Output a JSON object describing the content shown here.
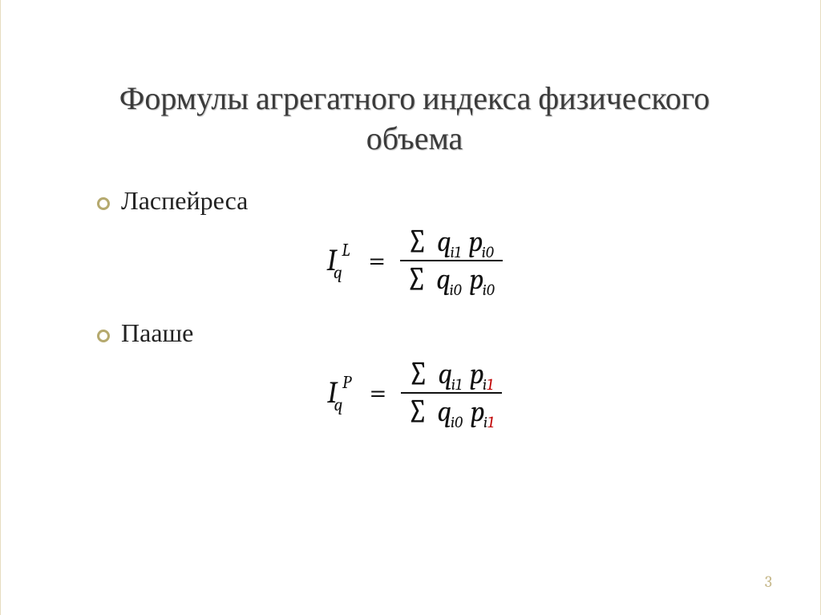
{
  "title": "Формулы агрегатного индекса физического объема",
  "page_number": "3",
  "colors": {
    "bullet_ring": "#b5a96e",
    "title_text": "#3b3b3b",
    "body_text": "#222222",
    "formula_text": "#111111",
    "highlight_red": "#c00000",
    "page_num": "#c6b88a",
    "background": "#ffffff"
  },
  "bullets": [
    {
      "label": "Ласпейреса"
    },
    {
      "label": "Пааше"
    }
  ],
  "formulas": {
    "laspeyres": {
      "lhs_base": "I",
      "lhs_sub": "q",
      "lhs_sup": "L",
      "num_sigma": "∑",
      "num_q": "q",
      "num_q_sub": "i1",
      "num_p": "p",
      "num_p_sub": "i0",
      "den_sigma": "∑",
      "den_q": "q",
      "den_q_sub": "i0",
      "den_p": "p",
      "den_p_sub": "i0"
    },
    "paasche": {
      "lhs_base": "I",
      "lhs_sub": "q",
      "lhs_sup": "P",
      "num_sigma": "∑",
      "num_q": "q",
      "num_q_sub_i": "i",
      "num_q_sub_1": "1",
      "num_p": "p",
      "num_p_sub_i": "i",
      "num_p_sub_1": "1",
      "den_sigma": "∑",
      "den_q": "q",
      "den_q_sub": "i0",
      "den_p": "p",
      "den_p_sub_i": "i",
      "den_p_sub_1": "1"
    }
  }
}
